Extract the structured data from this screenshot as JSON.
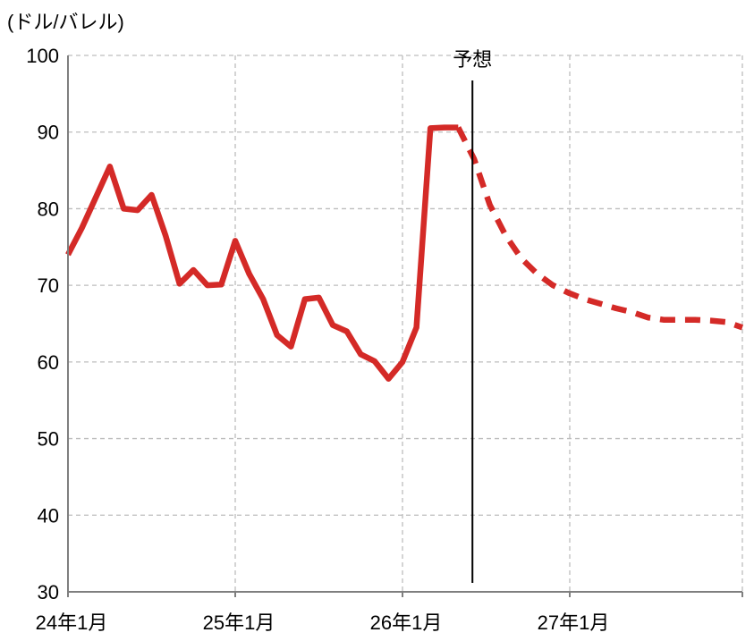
{
  "chart_data": {
    "type": "line",
    "unit_label": "(ドル/バレル)",
    "ylim": [
      30,
      100
    ],
    "yticks": [
      30,
      40,
      50,
      60,
      70,
      80,
      90,
      100
    ],
    "x_range": [
      0,
      39
    ],
    "x_ticks": [
      {
        "x": 0,
        "label": "24年1月"
      },
      {
        "x": 12,
        "label": "25年1月"
      },
      {
        "x": 24,
        "label": "26年1月"
      },
      {
        "x": 36,
        "label": "27年1月"
      }
    ],
    "grid": true,
    "forecast_divider": {
      "x": 28.9,
      "label": "予想"
    },
    "color": "#d42a27",
    "series": [
      {
        "style": "solid",
        "points": [
          [
            0,
            74.0
          ],
          [
            1,
            77.5
          ],
          [
            2,
            81.5
          ],
          [
            3,
            85.5
          ],
          [
            4,
            80.0
          ],
          [
            5,
            79.8
          ],
          [
            6,
            81.8
          ],
          [
            7,
            76.5
          ],
          [
            8,
            70.2
          ],
          [
            9,
            72.0
          ],
          [
            10,
            70.0
          ],
          [
            11,
            70.1
          ],
          [
            12,
            75.8
          ],
          [
            13,
            71.5
          ],
          [
            14,
            68.2
          ],
          [
            15,
            63.5
          ],
          [
            16,
            62.0
          ],
          [
            17,
            68.2
          ],
          [
            18,
            68.4
          ],
          [
            19,
            64.8
          ],
          [
            20,
            64.0
          ],
          [
            21,
            61.0
          ],
          [
            22,
            60.1
          ],
          [
            23,
            57.8
          ],
          [
            24,
            60.0
          ],
          [
            25,
            64.5
          ],
          [
            26,
            90.5
          ],
          [
            27,
            90.6
          ],
          [
            28,
            90.6
          ]
        ]
      },
      {
        "style": "dashed",
        "points": [
          [
            28,
            90.6
          ],
          [
            29,
            86.5
          ],
          [
            30,
            80.5
          ],
          [
            31,
            76.5
          ],
          [
            32,
            73.5
          ],
          [
            33,
            71.5
          ],
          [
            34,
            70.0
          ],
          [
            35,
            69.0
          ],
          [
            36,
            68.2
          ],
          [
            37,
            67.6
          ],
          [
            38,
            67.0
          ],
          [
            39,
            66.5
          ],
          [
            40,
            65.8
          ],
          [
            41,
            65.5
          ],
          [
            42,
            65.5
          ],
          [
            43,
            65.5
          ],
          [
            44,
            65.4
          ],
          [
            45,
            65.2
          ],
          [
            46,
            64.5
          ]
        ]
      }
    ]
  }
}
